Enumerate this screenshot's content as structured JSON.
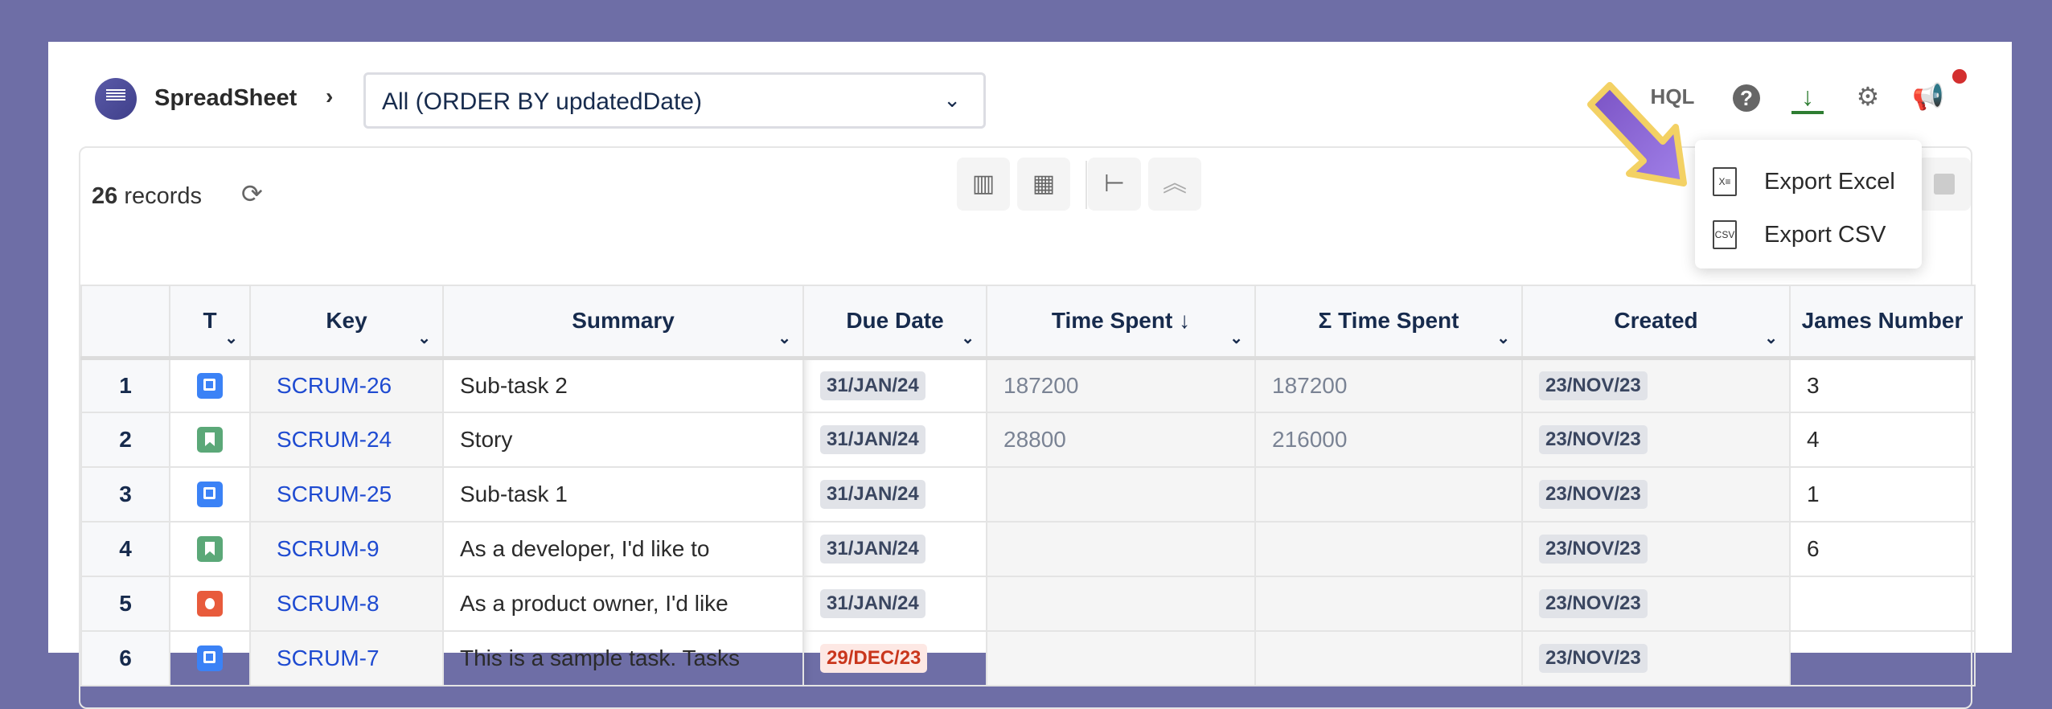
{
  "header": {
    "app_name": "SpreadSheet",
    "breadcrumb_sep": "›",
    "view_select": "All (ORDER BY updatedDate)",
    "hql_label": "HQL"
  },
  "toolbar": {
    "record_count": "26",
    "record_label": "records"
  },
  "menu": {
    "items": [
      {
        "label": "Export Excel",
        "icon": "excel-file-icon"
      },
      {
        "label": "Export CSV",
        "icon": "csv-file-icon"
      }
    ]
  },
  "colors": {
    "background": "#6e6ea6",
    "link": "#1f4bd1",
    "download": "#2e7d32",
    "notification": "#d32f2f",
    "overdue": "#c9361c"
  },
  "table": {
    "columns": [
      "",
      "T",
      "Key",
      "Summary",
      "Due Date",
      "Time Spent ↓",
      "Σ Time Spent",
      "Created",
      "James Number"
    ],
    "rows": [
      {
        "n": "1",
        "type": "subtask",
        "key": "SCRUM-26",
        "summary": "Sub-task 2",
        "due": "31/JAN/24",
        "overdue": false,
        "time_spent": "187200",
        "sum_time_spent": "187200",
        "created": "23/NOV/23",
        "james": "3"
      },
      {
        "n": "2",
        "type": "story",
        "key": "SCRUM-24",
        "summary": "Story",
        "due": "31/JAN/24",
        "overdue": false,
        "time_spent": "28800",
        "sum_time_spent": "216000",
        "created": "23/NOV/23",
        "james": "4"
      },
      {
        "n": "3",
        "type": "subtask",
        "key": "SCRUM-25",
        "summary": "Sub-task 1",
        "due": "31/JAN/24",
        "overdue": false,
        "time_spent": "",
        "sum_time_spent": "",
        "created": "23/NOV/23",
        "james": "1"
      },
      {
        "n": "4",
        "type": "story",
        "key": "SCRUM-9",
        "summary": "As a developer, I'd like to",
        "due": "31/JAN/24",
        "overdue": false,
        "time_spent": "",
        "sum_time_spent": "",
        "created": "23/NOV/23",
        "james": "6"
      },
      {
        "n": "5",
        "type": "bug",
        "key": "SCRUM-8",
        "summary": "As a product owner, I'd like",
        "due": "31/JAN/24",
        "overdue": false,
        "time_spent": "",
        "sum_time_spent": "",
        "created": "23/NOV/23",
        "james": ""
      },
      {
        "n": "6",
        "type": "subtask",
        "key": "SCRUM-7",
        "summary": "This is a sample task. Tasks",
        "due": "29/DEC/23",
        "overdue": true,
        "time_spent": "",
        "sum_time_spent": "",
        "created": "23/NOV/23",
        "james": ""
      }
    ]
  }
}
